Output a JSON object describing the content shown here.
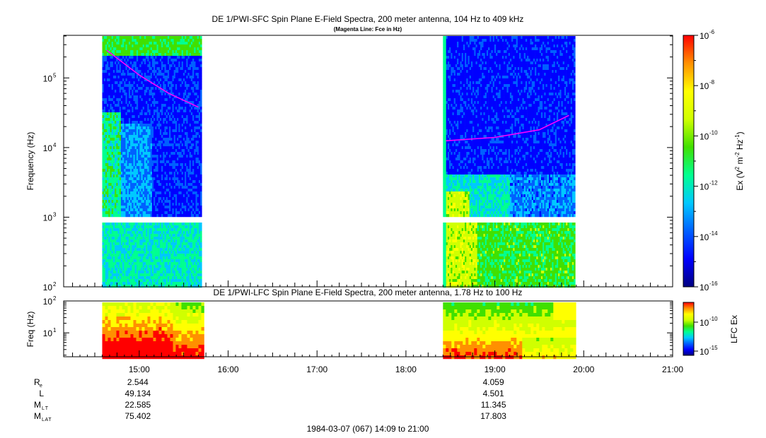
{
  "chart_data": [
    {
      "type": "heatmap",
      "title": "DE 1/PWI-SFC  Spin Plane E-Field Spectra, 200 meter antenna, 104 Hz to 409 kHz",
      "subtitle": "(Magenta Line: Fce in Hz)",
      "ylabel": "Frequency (Hz)",
      "yscale": "log",
      "ylim": [
        100,
        409000
      ],
      "yticks": [
        {
          "value": 100,
          "base": "10",
          "exp": "2"
        },
        {
          "value": 1000,
          "base": "10",
          "exp": "3"
        },
        {
          "value": 10000,
          "base": "10",
          "exp": "4"
        },
        {
          "value": 100000,
          "base": "10",
          "exp": "5"
        }
      ],
      "xlim": [
        "14:09",
        "21:00"
      ],
      "data_intervals": [
        {
          "start": "14:35",
          "end": "15:42"
        },
        {
          "start": "18:25",
          "end": "19:54"
        }
      ],
      "series": [
        {
          "name": "Fce",
          "color": "#ff00ff",
          "segment": 1,
          "points": [
            [
              "14:38",
              250000
            ],
            [
              "15:00",
              110000
            ],
            [
              "15:20",
              60000
            ],
            [
              "15:40",
              38000
            ]
          ]
        },
        {
          "name": "Fce",
          "color": "#ff00ff",
          "segment": 2,
          "points": [
            [
              "18:27",
              12500
            ],
            [
              "19:00",
              14000
            ],
            [
              "19:30",
              18000
            ],
            [
              "19:50",
              29000
            ]
          ]
        }
      ],
      "colorbar": {
        "label": "Ex (V<sup>2</sup> m<sup>-2</sup> Hz<sup>-1</sup>)",
        "label_parts": [
          "Ex (V",
          "2",
          " m",
          "-2",
          " Hz",
          "-1",
          ")"
        ],
        "scale": "log",
        "range": [
          1e-16,
          1e-06
        ],
        "ticks": [
          {
            "value": 1e-06,
            "base": "10",
            "exp": "-6"
          },
          {
            "value": 1e-08,
            "base": "10",
            "exp": "-8"
          },
          {
            "value": 1e-10,
            "base": "10",
            "exp": "-10"
          },
          {
            "value": 1e-12,
            "base": "10",
            "exp": "-12"
          },
          {
            "value": 1e-14,
            "base": "10",
            "exp": "-14"
          },
          {
            "value": 1e-16,
            "base": "10",
            "exp": "-16"
          }
        ]
      }
    },
    {
      "type": "heatmap",
      "title": "DE 1/PWI-LFC  Spin Plane E-Field Spectra, 200 meter antenna, 1.78 Hz to 100 Hz",
      "ylabel": "Freq (Hz)",
      "yscale": "log",
      "ylim": [
        1.78,
        100
      ],
      "yticks": [
        {
          "value": 10,
          "base": "10",
          "exp": "1"
        },
        {
          "value": 100,
          "base": "10",
          "exp": "2"
        }
      ],
      "xlim": [
        "14:09",
        "21:00"
      ],
      "x_tick_labels": [
        "15:00",
        "16:00",
        "17:00",
        "18:00",
        "19:00",
        "20:00",
        "21:00"
      ],
      "colorbar": {
        "label": "LFC Ex",
        "scale": "log",
        "ticks": [
          {
            "value": 1e-10,
            "base": "10",
            "exp": "-10"
          },
          {
            "value": 1e-15,
            "base": "10",
            "exp": "-15"
          }
        ]
      }
    }
  ],
  "ephemeris": {
    "rows": [
      {
        "label": "R",
        "sub": "e",
        "values": [
          "2.544",
          "4.059"
        ]
      },
      {
        "label": "L",
        "sub": "",
        "values": [
          "49.134",
          "4.501"
        ]
      },
      {
        "label": "M",
        "sub": "LT",
        "values": [
          "22.585",
          "11.345"
        ]
      },
      {
        "label": "M",
        "sub": "LAT",
        "values": [
          "75.402",
          "17.803"
        ]
      }
    ],
    "columns_at": [
      "15:00",
      "19:00"
    ]
  },
  "footer": "1984-03-07 (067) 14:09 to 21:00",
  "colors": {
    "background": "#ffffff",
    "fce_line": "#ff00ff",
    "colormap": [
      "#000080",
      "#0000ff",
      "#0060ff",
      "#00c8ff",
      "#00ff90",
      "#40e000",
      "#d0ff00",
      "#ffff00",
      "#ff9000",
      "#ff0000"
    ]
  }
}
